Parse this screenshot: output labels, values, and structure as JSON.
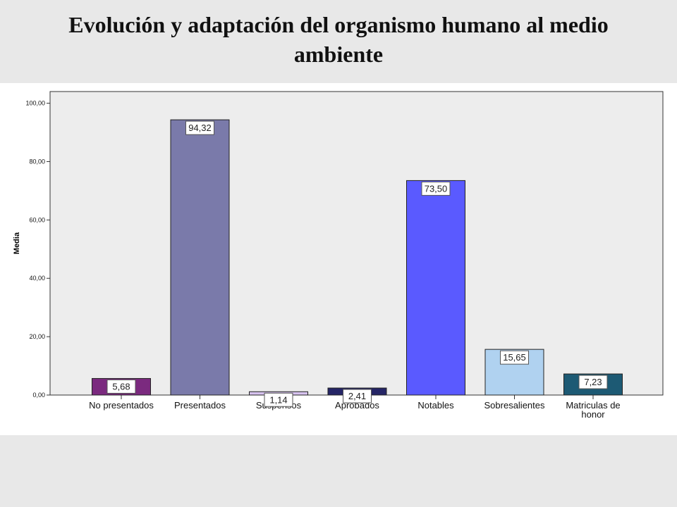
{
  "title": "Evolución y adaptación del organismo humano al medio ambiente",
  "chart_data": {
    "type": "bar",
    "title": "",
    "xlabel": "",
    "ylabel": "Media",
    "ylim": [
      0,
      104
    ],
    "yticks": [
      "0,00",
      "20,00",
      "40,00",
      "60,00",
      "80,00",
      "100,00"
    ],
    "grid": false,
    "categories": [
      "No presentados",
      "Presentados",
      "Suspensos",
      "Aprobados",
      "Notables",
      "Sobresalientes",
      "Matriculas de honor"
    ],
    "values": [
      5.68,
      94.32,
      1.14,
      2.41,
      73.5,
      15.65,
      7.23
    ],
    "data_labels": [
      "5,68",
      "94,32",
      "1,14",
      "2,41",
      "73,50",
      "15,65",
      "7,23"
    ],
    "colors": [
      "#7b2a7f",
      "#7a7aaa",
      "#d7c3ef",
      "#252566",
      "#5a5aff",
      "#b0d2f0",
      "#1d5a74"
    ],
    "plot_background": "#ededed"
  }
}
